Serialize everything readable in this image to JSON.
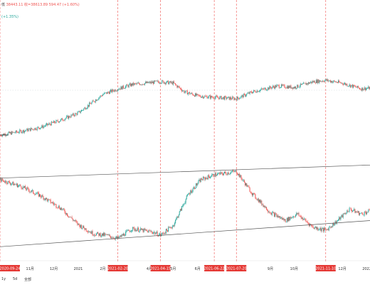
{
  "header": {
    "ohlc_prefix": "低",
    "price_line": "38443.11 收=38613.89",
    "change_text": "594.47 (+1.60%)",
    "indicator_text": "(+1.35%)"
  },
  "timeframes": [
    "1y",
    "5d",
    "全部"
  ],
  "colors": {
    "up": "#26a69a",
    "down": "#ef5350",
    "event_line": "#ef5350",
    "trendline": "#555555",
    "date_badge": "#e53935",
    "axis_text": "#333333"
  },
  "chart_data": [
    {
      "type": "candlestick",
      "title": "",
      "xlabel": "",
      "ylabel": "",
      "x_ticks": [
        "11月",
        "12月",
        "2021",
        "2月",
        "4月",
        "5月",
        "6月",
        "9月",
        "10月",
        "12月",
        "2022"
      ],
      "event_dates": [
        "2020-09-24",
        "2021-02-20",
        "2021-04-15",
        "2021-06-22",
        "2021-07-20",
        "2021-11-10"
      ],
      "close_path": [
        {
          "date": "2020-09-24",
          "close": 0.05
        },
        {
          "date": "2020-10-20",
          "close": 0.1
        },
        {
          "date": "2020-11-15",
          "close": 0.16
        },
        {
          "date": "2020-12-10",
          "close": 0.26
        },
        {
          "date": "2021-01-01",
          "close": 0.36
        },
        {
          "date": "2021-01-20",
          "close": 0.52
        },
        {
          "date": "2021-02-01",
          "close": 0.62
        },
        {
          "date": "2021-02-20",
          "close": 0.7
        },
        {
          "date": "2021-03-10",
          "close": 0.76
        },
        {
          "date": "2021-04-15",
          "close": 0.8
        },
        {
          "date": "2021-05-01",
          "close": 0.78
        },
        {
          "date": "2021-05-15",
          "close": 0.66
        },
        {
          "date": "2021-06-01",
          "close": 0.6
        },
        {
          "date": "2021-06-22",
          "close": 0.58
        },
        {
          "date": "2021-07-20",
          "close": 0.56
        },
        {
          "date": "2021-08-10",
          "close": 0.66
        },
        {
          "date": "2021-09-10",
          "close": 0.74
        },
        {
          "date": "2021-10-01",
          "close": 0.72
        },
        {
          "date": "2021-10-25",
          "close": 0.8
        },
        {
          "date": "2021-11-10",
          "close": 0.82
        },
        {
          "date": "2021-12-01",
          "close": 0.78
        },
        {
          "date": "2021-12-25",
          "close": 0.7
        },
        {
          "date": "2022-01-05",
          "close": 0.71
        }
      ]
    },
    {
      "type": "candlestick",
      "title": "",
      "xlabel": "",
      "ylabel": "",
      "close_path": [
        {
          "date": "2020-09-24",
          "close": 0.8
        },
        {
          "date": "2020-10-20",
          "close": 0.72
        },
        {
          "date": "2020-11-15",
          "close": 0.6
        },
        {
          "date": "2020-12-10",
          "close": 0.45
        },
        {
          "date": "2021-01-01",
          "close": 0.25
        },
        {
          "date": "2021-01-20",
          "close": 0.14
        },
        {
          "date": "2021-02-05",
          "close": 0.12
        },
        {
          "date": "2021-02-20",
          "close": 0.08
        },
        {
          "date": "2021-03-10",
          "close": 0.2
        },
        {
          "date": "2021-04-05",
          "close": 0.16
        },
        {
          "date": "2021-04-15",
          "close": 0.12
        },
        {
          "date": "2021-05-01",
          "close": 0.24
        },
        {
          "date": "2021-05-20",
          "close": 0.62
        },
        {
          "date": "2021-06-05",
          "close": 0.8
        },
        {
          "date": "2021-06-22",
          "close": 0.86
        },
        {
          "date": "2021-07-20",
          "close": 0.9
        },
        {
          "date": "2021-08-10",
          "close": 0.62
        },
        {
          "date": "2021-09-01",
          "close": 0.4
        },
        {
          "date": "2021-09-20",
          "close": 0.3
        },
        {
          "date": "2021-10-05",
          "close": 0.38
        },
        {
          "date": "2021-10-25",
          "close": 0.22
        },
        {
          "date": "2021-11-10",
          "close": 0.18
        },
        {
          "date": "2021-11-25",
          "close": 0.3
        },
        {
          "date": "2021-12-10",
          "close": 0.44
        },
        {
          "date": "2021-12-25",
          "close": 0.38
        },
        {
          "date": "2022-01-05",
          "close": 0.42
        }
      ],
      "trendlines": [
        {
          "from": {
            "date": "2020-09-24",
            "value": 0.82
          },
          "to": {
            "date": "2022-01-05",
            "value": 0.98
          }
        },
        {
          "from": {
            "date": "2020-09-24",
            "value": -0.02
          },
          "to": {
            "date": "2022-01-05",
            "value": 0.3
          }
        }
      ]
    }
  ]
}
